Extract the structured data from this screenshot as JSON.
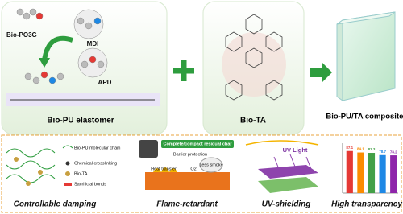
{
  "top": {
    "monomers": [
      "Bio-PO3G",
      "MDI",
      "APD"
    ],
    "elastomer": "Bio-PU elastomer",
    "filler": "Bio-TA",
    "composite": "Bio-PU/TA composites"
  },
  "bottom": {
    "damping": {
      "legend": [
        "Bio-PU molecular chain",
        "Chemical crosslinking",
        "Bio-TA",
        "Sacrificial bonds"
      ],
      "caption": "Controllable damping"
    },
    "flame": {
      "char": "Complete/compact residual char",
      "barrier": "Barrier protection",
      "heat": "Heat transfer",
      "oxygen": "O2",
      "smoke": "Less smoke",
      "caption": "Flame-retardant"
    },
    "uv": {
      "light": "UV Light",
      "caption": "UV-shielding"
    },
    "transparency": {
      "caption": "High transparency",
      "values": [
        87.1,
        84.1,
        83.3,
        78.7,
        78.2
      ],
      "colors": [
        "#e53935",
        "#fb8c00",
        "#43a047",
        "#1e88e5",
        "#8e24aa"
      ]
    }
  }
}
